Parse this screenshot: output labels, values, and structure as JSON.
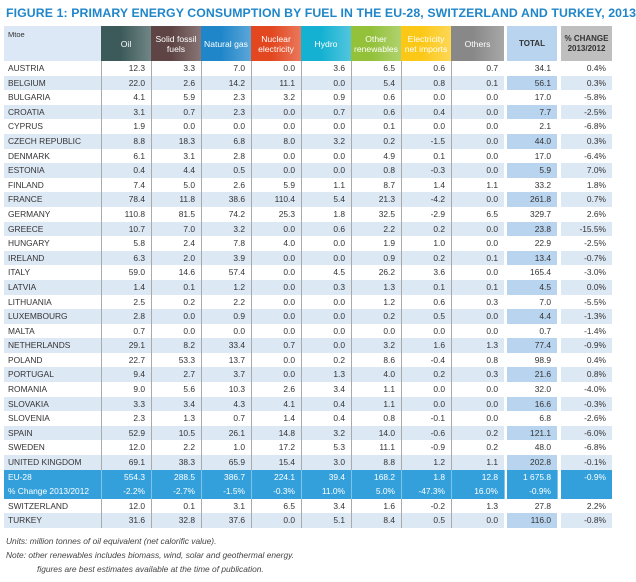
{
  "title": "FIGURE 1: PRIMARY ENERGY CONSUMPTION BY FUEL IN THE EU-28, SWITZERLAND AND TURKEY, 2013",
  "headers": [
    {
      "label": "Mtoe",
      "color": "#dce8f5"
    },
    {
      "label": "Oil",
      "color": "#3d5a5a"
    },
    {
      "label": "Solid fossil fuels",
      "color": "#5e4444"
    },
    {
      "label": "Natural gas",
      "color": "#1f86c9"
    },
    {
      "label": "Nuclear electricity",
      "color": "#e2471f"
    },
    {
      "label": "Hydro",
      "color": "#14b1d2"
    },
    {
      "label": "Other renewables",
      "color": "#93c13a"
    },
    {
      "label": "Electricity net imports",
      "color": "#fcc817"
    },
    {
      "label": "Others",
      "color": "#888888"
    },
    {
      "label": "TOTAL",
      "color": "#b9d4ef"
    },
    {
      "label": "% CHANGE 2013/2012",
      "color": "#bfbfbf"
    }
  ],
  "rows": [
    [
      "AUSTRIA",
      "12.3",
      "3.3",
      "7.0",
      "0.0",
      "3.6",
      "6.5",
      "0.6",
      "0.7",
      "34.1",
      "0.4%"
    ],
    [
      "BELGIUM",
      "22.0",
      "2.6",
      "14.2",
      "11.1",
      "0.0",
      "5.4",
      "0.8",
      "0.1",
      "56.1",
      "0.3%"
    ],
    [
      "BULGARIA",
      "4.1",
      "5.9",
      "2.3",
      "3.2",
      "0.9",
      "0.6",
      "0.0",
      "0.0",
      "17.0",
      "-5.8%"
    ],
    [
      "CROATIA",
      "3.1",
      "0.7",
      "2.3",
      "0.0",
      "0.7",
      "0.6",
      "0.4",
      "0.0",
      "7.7",
      "-2.5%"
    ],
    [
      "CYPRUS",
      "1.9",
      "0.0",
      "0.0",
      "0.0",
      "0.0",
      "0.1",
      "0.0",
      "0.0",
      "2.1",
      "-6.8%"
    ],
    [
      "CZECH REPUBLIC",
      "8.8",
      "18.3",
      "6.8",
      "8.0",
      "3.2",
      "0.2",
      "-1.5",
      "0.0",
      "44.0",
      "0.3%"
    ],
    [
      "DENMARK",
      "6.1",
      "3.1",
      "2.8",
      "0.0",
      "0.0",
      "4.9",
      "0.1",
      "0.0",
      "17.0",
      "-6.4%"
    ],
    [
      "ESTONIA",
      "0.4",
      "4.4",
      "0.5",
      "0.0",
      "0.0",
      "0.8",
      "-0.3",
      "0.0",
      "5.9",
      "7.0%"
    ],
    [
      "FINLAND",
      "7.4",
      "5.0",
      "2.6",
      "5.9",
      "1.1",
      "8.7",
      "1.4",
      "1.1",
      "33.2",
      "1.8%"
    ],
    [
      "FRANCE",
      "78.4",
      "11.8",
      "38.6",
      "110.4",
      "5.4",
      "21.3",
      "-4.2",
      "0.0",
      "261.8",
      "0.7%"
    ],
    [
      "GERMANY",
      "110.8",
      "81.5",
      "74.2",
      "25.3",
      "1.8",
      "32.5",
      "-2.9",
      "6.5",
      "329.7",
      "2.6%"
    ],
    [
      "GREECE",
      "10.7",
      "7.0",
      "3.2",
      "0.0",
      "0.6",
      "2.2",
      "0.2",
      "0.0",
      "23.8",
      "-15.5%"
    ],
    [
      "HUNGARY",
      "5.8",
      "2.4",
      "7.8",
      "4.0",
      "0.0",
      "1.9",
      "1.0",
      "0.0",
      "22.9",
      "-2.5%"
    ],
    [
      "IRELAND",
      "6.3",
      "2.0",
      "3.9",
      "0.0",
      "0.0",
      "0.9",
      "0.2",
      "0.1",
      "13.4",
      "-0.7%"
    ],
    [
      "ITALY",
      "59.0",
      "14.6",
      "57.4",
      "0.0",
      "4.5",
      "26.2",
      "3.6",
      "0.0",
      "165.4",
      "-3.0%"
    ],
    [
      "LATVIA",
      "1.4",
      "0.1",
      "1.2",
      "0.0",
      "0.3",
      "1.3",
      "0.1",
      "0.1",
      "4.5",
      "0.0%"
    ],
    [
      "LITHUANIA",
      "2.5",
      "0.2",
      "2.2",
      "0.0",
      "0.0",
      "1.2",
      "0.6",
      "0.3",
      "7.0",
      "-5.5%"
    ],
    [
      "LUXEMBOURG",
      "2.8",
      "0.0",
      "0.9",
      "0.0",
      "0.0",
      "0.2",
      "0.5",
      "0.0",
      "4.4",
      "-1.3%"
    ],
    [
      "MALTA",
      "0.7",
      "0.0",
      "0.0",
      "0.0",
      "0.0",
      "0.0",
      "0.0",
      "0.0",
      "0.7",
      "-1.4%"
    ],
    [
      "NETHERLANDS",
      "29.1",
      "8.2",
      "33.4",
      "0.7",
      "0.0",
      "3.2",
      "1.6",
      "1.3",
      "77.4",
      "-0.9%"
    ],
    [
      "POLAND",
      "22.7",
      "53.3",
      "13.7",
      "0.0",
      "0.2",
      "8.6",
      "-0.4",
      "0.8",
      "98.9",
      "0.4%"
    ],
    [
      "PORTUGAL",
      "9.4",
      "2.7",
      "3.7",
      "0.0",
      "1.3",
      "4.0",
      "0.2",
      "0.3",
      "21.6",
      "0.8%"
    ],
    [
      "ROMANIA",
      "9.0",
      "5.6",
      "10.3",
      "2.6",
      "3.4",
      "1.1",
      "0.0",
      "0.0",
      "32.0",
      "-4.0%"
    ],
    [
      "SLOVAKIA",
      "3.3",
      "3.4",
      "4.3",
      "4.1",
      "0.4",
      "1.1",
      "0.0",
      "0.0",
      "16.6",
      "-0.3%"
    ],
    [
      "SLOVENIA",
      "2.3",
      "1.3",
      "0.7",
      "1.4",
      "0.4",
      "0.8",
      "-0.1",
      "0.0",
      "6.8",
      "-2.6%"
    ],
    [
      "SPAIN",
      "52.9",
      "10.5",
      "26.1",
      "14.8",
      "3.2",
      "14.0",
      "-0.6",
      "0.2",
      "121.1",
      "-6.0%"
    ],
    [
      "SWEDEN",
      "12.0",
      "2.2",
      "1.0",
      "17.2",
      "5.3",
      "11.1",
      "-0.9",
      "0.2",
      "48.0",
      "-6.8%"
    ],
    [
      "UNITED KINGDOM",
      "69.1",
      "38.3",
      "65.9",
      "15.4",
      "3.0",
      "8.8",
      "1.2",
      "1.1",
      "202.8",
      "-0.1%"
    ],
    [
      "EU-28",
      "554.3",
      "288.5",
      "386.7",
      "224.1",
      "39.4",
      "168.2",
      "1.8",
      "12.8",
      "1 675.8",
      "-0.9%"
    ],
    [
      "% Change 2013/2012",
      "-2.2%",
      "-2.7%",
      "-1.5%",
      "-0.3%",
      "11.0%",
      "5.0%",
      "-47.3%",
      "16.0%",
      "-0.9%",
      ""
    ],
    [
      "SWITZERLAND",
      "12.0",
      "0.1",
      "3.1",
      "6.5",
      "3.4",
      "1.6",
      "-0.2",
      "1.3",
      "27.8",
      "2.2%"
    ],
    [
      "TURKEY",
      "31.6",
      "32.8",
      "37.6",
      "0.0",
      "5.1",
      "8.4",
      "0.5",
      "0.0",
      "116.0",
      "-0.8%"
    ]
  ],
  "notes": {
    "units": "Units: million tonnes of oil equivalent (net calorific value).",
    "note1": "Note:  other renewables includes biomass, wind, solar and geothermal energy.",
    "note2": "figures are best estimates available at the time of publication."
  }
}
